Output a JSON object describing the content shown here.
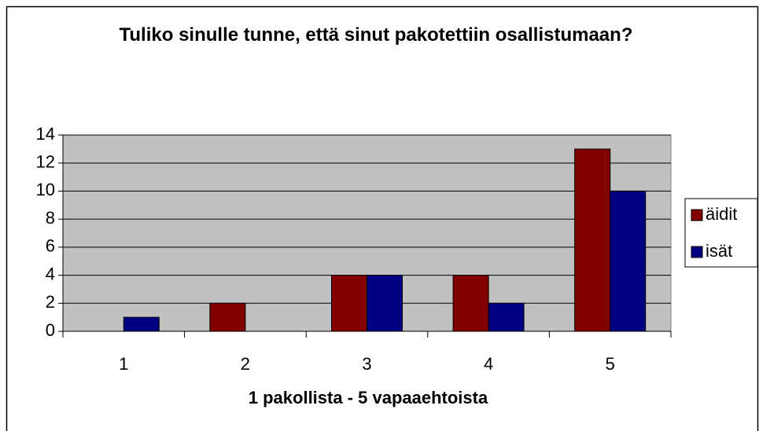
{
  "chart_data": {
    "type": "bar",
    "title": "Tuliko sinulle tunne, että sinut pakotettiin osallistumaan?",
    "x_label": "1 pakollista - 5 vapaaehtoista",
    "categories": [
      "1",
      "2",
      "3",
      "4",
      "5"
    ],
    "series": [
      {
        "name": "äidit",
        "color": "#800000",
        "values": [
          0,
          2,
          4,
          4,
          13
        ]
      },
      {
        "name": "isät",
        "color": "#000080",
        "values": [
          1,
          0,
          4,
          2,
          10
        ]
      }
    ],
    "ylim": [
      0,
      14
    ],
    "yticks": [
      0,
      2,
      4,
      6,
      8,
      10,
      12,
      14
    ],
    "grid": true,
    "plot_background": "#c0c0c0",
    "legend": "right"
  }
}
